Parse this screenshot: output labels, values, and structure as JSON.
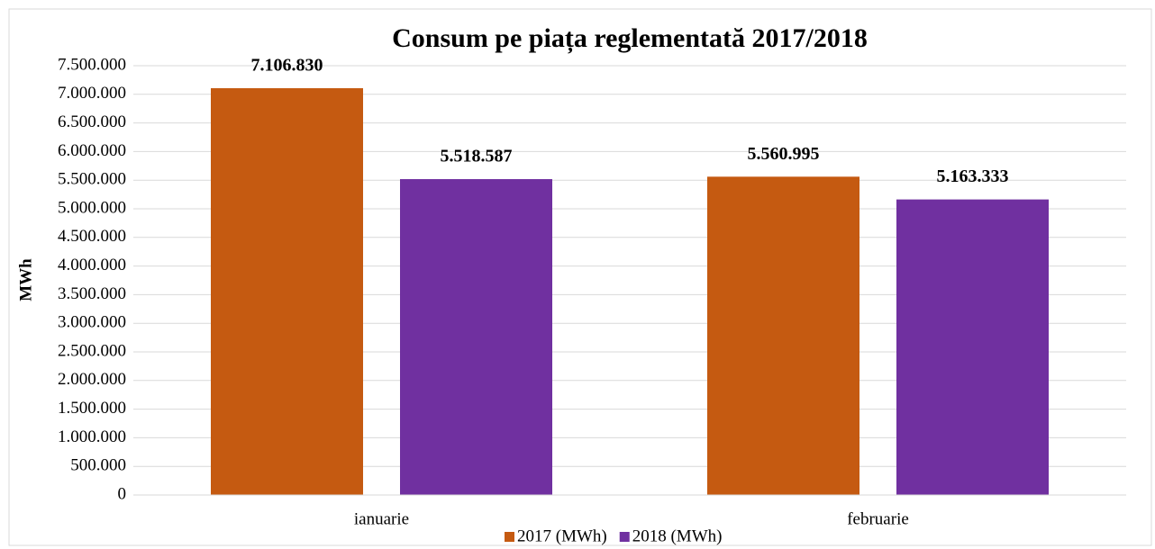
{
  "chart_data": {
    "type": "bar",
    "title": "Consum pe piața reglementată 2017/2018",
    "y_label": "MWh",
    "categories": [
      "ianuarie",
      "februarie"
    ],
    "series": [
      {
        "name": "2017 (MWh)",
        "color": "#c55a11",
        "values": [
          7106830,
          5560995
        ],
        "value_labels": [
          "7.106.830",
          "5.560.995"
        ]
      },
      {
        "name": "2018 (MWh)",
        "color": "#7030a0",
        "values": [
          5518587,
          5163333
        ],
        "value_labels": [
          "5.518.587",
          "5.163.333"
        ]
      }
    ],
    "ylim": [
      0,
      7500000
    ],
    "yticks": [
      0,
      {
        "value": 500000,
        "label": "500.000"
      },
      {
        "value": 1000000,
        "label": "1.000.000"
      },
      {
        "value": 1500000,
        "label": "1.500.000"
      },
      {
        "value": 2000000,
        "label": "2.000.000"
      },
      {
        "value": 2500000,
        "label": "2.500.000"
      },
      {
        "value": 3000000,
        "label": "3.000.000"
      },
      {
        "value": 3500000,
        "label": "3.500.000"
      },
      {
        "value": 4000000,
        "label": "4.000.000"
      },
      {
        "value": 4500000,
        "label": "4.500.000"
      },
      {
        "value": 5000000,
        "label": "5.000.000"
      },
      {
        "value": 5500000,
        "label": "5.500.000"
      },
      {
        "value": 6000000,
        "label": "6.000.000"
      },
      {
        "value": 6500000,
        "label": "6.500.000"
      },
      {
        "value": 7000000,
        "label": "7.000.000"
      },
      {
        "value": 7500000,
        "label": "7.500.000"
      }
    ],
    "grid": true,
    "legend": "bottom"
  }
}
